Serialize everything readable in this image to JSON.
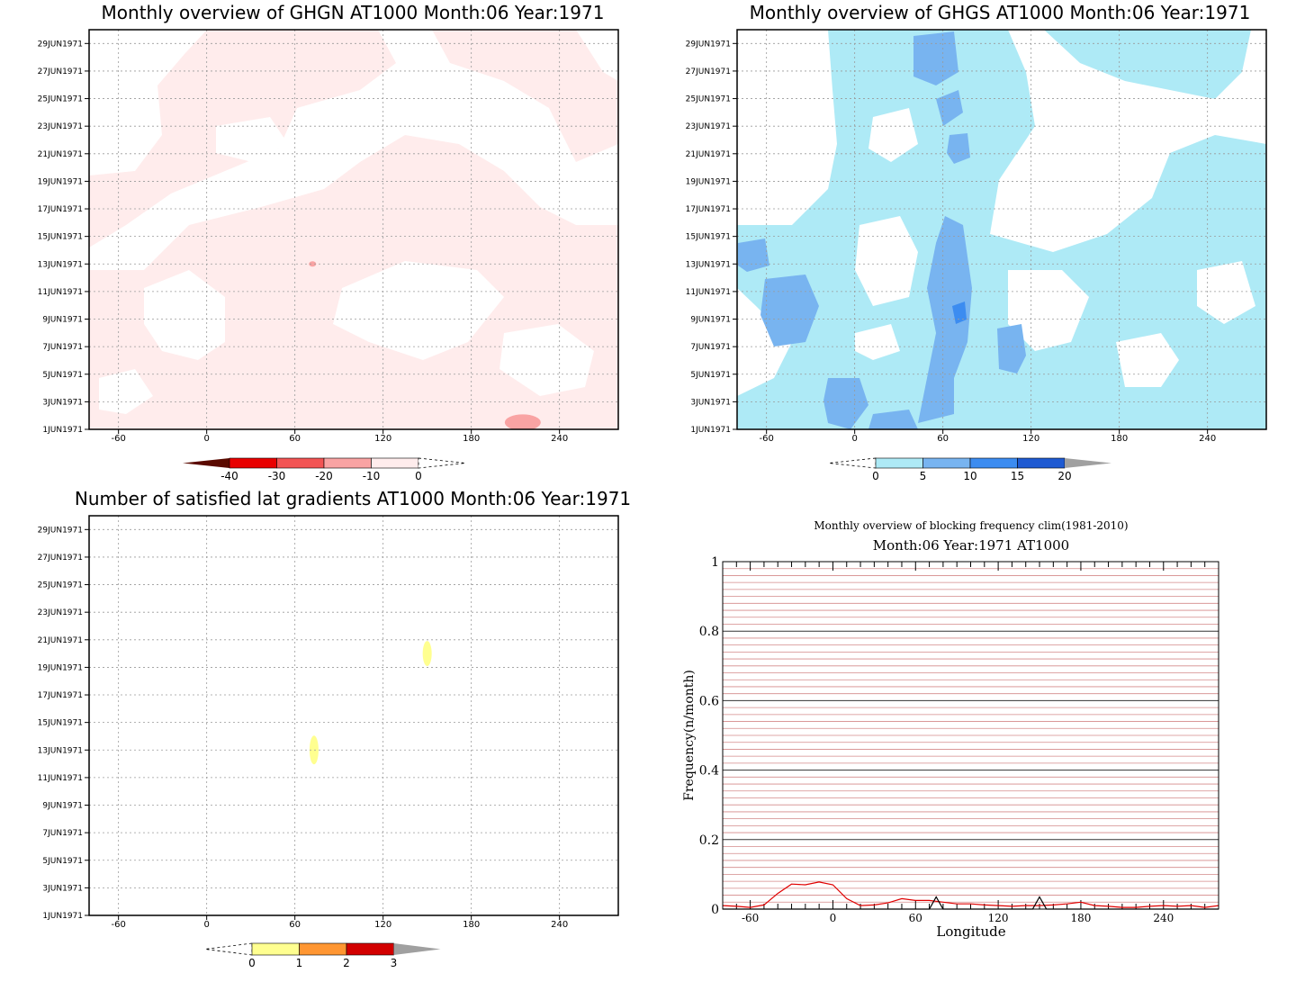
{
  "chart_data": [
    {
      "type": "heatmap",
      "title": "Monthly overview of GHGN AT1000 Month:06 Year:1971",
      "x_ticks": [
        "-60",
        "0",
        "60",
        "120",
        "180",
        "240"
      ],
      "x_tick_values": [
        -60,
        0,
        60,
        120,
        180,
        240
      ],
      "xlim": [
        -80,
        280
      ],
      "y_ticks": [
        "1JUN1971",
        "3JUN1971",
        "5JUN1971",
        "7JUN1971",
        "9JUN1971",
        "11JUN1971",
        "13JUN1971",
        "15JUN1971",
        "17JUN1971",
        "19JUN1971",
        "21JUN1971",
        "23JUN1971",
        "25JUN1971",
        "27JUN1971",
        "29JUN1971"
      ],
      "ylim": [
        "1JUN1971",
        "30JUN1971"
      ],
      "grid": true,
      "colorbar": {
        "levels": [
          "-40",
          "-30",
          "-20",
          "-10",
          "0"
        ],
        "level_values": [
          -40,
          -30,
          -20,
          -10,
          0
        ],
        "colors": [
          "#5a0a00",
          "#e80000",
          "#f25454",
          "#f9a3a3",
          "#ffecec",
          "#ffffff"
        ]
      },
      "dominant_range": [
        -10,
        0
      ],
      "features": [
        {
          "range": [
            -20,
            -10
          ],
          "lon": 215,
          "day": 1.5
        },
        {
          "range": [
            -20,
            -10
          ],
          "lon": 72,
          "day": 13.0
        }
      ]
    },
    {
      "type": "heatmap",
      "title": "Monthly overview of GHGS AT1000 Month:06 Year:1971",
      "x_ticks": [
        "-60",
        "0",
        "60",
        "120",
        "180",
        "240"
      ],
      "x_tick_values": [
        -60,
        0,
        60,
        120,
        180,
        240
      ],
      "xlim": [
        -80,
        280
      ],
      "y_ticks": [
        "1JUN1971",
        "3JUN1971",
        "5JUN1971",
        "7JUN1971",
        "9JUN1971",
        "11JUN1971",
        "13JUN1971",
        "15JUN1971",
        "17JUN1971",
        "19JUN1971",
        "21JUN1971",
        "23JUN1971",
        "25JUN1971",
        "27JUN1971",
        "29JUN1971"
      ],
      "ylim": [
        "1JUN1971",
        "30JUN1971"
      ],
      "grid": true,
      "colorbar": {
        "levels": [
          "0",
          "5",
          "10",
          "15",
          "20"
        ],
        "level_values": [
          0,
          5,
          10,
          15,
          20
        ],
        "colors": [
          "#ffffff",
          "#aeeaf6",
          "#78b4f0",
          "#3c8cf0",
          "#1e5ad2",
          "#a0a0a0"
        ]
      },
      "dominant_range": [
        0,
        5
      ],
      "features": [
        {
          "range": [
            5,
            10
          ],
          "lon": 72,
          "day": 13.5
        },
        {
          "range": [
            10,
            15
          ],
          "lon": 72,
          "day": 10.0
        },
        {
          "range": [
            5,
            10
          ],
          "lon": -45,
          "day": 10.5
        },
        {
          "range": [
            5,
            10
          ],
          "lon": -10,
          "day": 3.0
        },
        {
          "range": [
            5,
            10
          ],
          "lon": 105,
          "day": 7.0
        },
        {
          "range": [
            5,
            10
          ],
          "lon": 55,
          "day": 28.0
        }
      ]
    },
    {
      "type": "heatmap",
      "title": "Number of satisfied lat gradients AT1000 Month:06 Year:1971",
      "x_ticks": [
        "-60",
        "0",
        "60",
        "120",
        "180",
        "240"
      ],
      "x_tick_values": [
        -60,
        0,
        60,
        120,
        180,
        240
      ],
      "xlim": [
        -80,
        280
      ],
      "y_ticks": [
        "1JUN1971",
        "3JUN1971",
        "5JUN1971",
        "7JUN1971",
        "9JUN1971",
        "11JUN1971",
        "13JUN1971",
        "15JUN1971",
        "17JUN1971",
        "19JUN1971",
        "21JUN1971",
        "23JUN1971",
        "25JUN1971",
        "27JUN1971",
        "29JUN1971"
      ],
      "ylim": [
        "1JUN1971",
        "30JUN1971"
      ],
      "grid": true,
      "colorbar": {
        "levels": [
          "0",
          "1",
          "2",
          "3"
        ],
        "level_values": [
          0,
          1,
          2,
          3
        ],
        "colors": [
          "#ffffff",
          "#ffff90",
          "#ff9632",
          "#d20000",
          "#a0a0a0"
        ]
      },
      "features": [
        {
          "range": [
            0,
            1
          ],
          "lon": 150,
          "day": 20.0
        },
        {
          "range": [
            0,
            1
          ],
          "lon": 73,
          "day": 13.0
        }
      ]
    },
    {
      "type": "line",
      "title": "Monthly overview of blocking frequency clim(1981-2010)",
      "subtitle": "Month:06 Year:1971  AT1000",
      "xlabel": "Longitude",
      "ylabel": "Frequency(n/month)",
      "xlim": [
        -80,
        280
      ],
      "ylim": [
        0,
        1
      ],
      "x_ticks": [
        "-60",
        "0",
        "60",
        "120",
        "180",
        "240"
      ],
      "x_tick_values": [
        -60,
        0,
        60,
        120,
        180,
        240
      ],
      "y_ticks": [
        "0",
        "0.2",
        "0.4",
        "0.6",
        "0.8",
        "1"
      ],
      "y_tick_values": [
        0,
        0.2,
        0.4,
        0.6,
        0.8,
        1
      ],
      "grid": true,
      "series": [
        {
          "color": "#e00000",
          "x": [
            -80,
            -70,
            -60,
            -50,
            -40,
            -30,
            -20,
            -10,
            0,
            10,
            20,
            30,
            40,
            50,
            60,
            70,
            80,
            90,
            100,
            110,
            120,
            130,
            140,
            150,
            160,
            170,
            180,
            190,
            200,
            210,
            220,
            230,
            240,
            250,
            260,
            270,
            280
          ],
          "values": [
            0.01,
            0.008,
            0.005,
            0.012,
            0.045,
            0.072,
            0.07,
            0.078,
            0.07,
            0.03,
            0.01,
            0.012,
            0.018,
            0.03,
            0.025,
            0.025,
            0.02,
            0.015,
            0.015,
            0.012,
            0.01,
            0.008,
            0.01,
            0.01,
            0.012,
            0.015,
            0.02,
            0.01,
            0.008,
            0.005,
            0.005,
            0.008,
            0.01,
            0.008,
            0.01,
            0.005,
            0.01
          ]
        },
        {
          "color": "#000000",
          "x": [
            -80,
            60,
            70,
            75,
            80,
            90,
            140,
            145,
            150,
            155,
            160,
            280
          ],
          "values": [
            0,
            0,
            0,
            0.035,
            0,
            0,
            0,
            0,
            0.035,
            0,
            0,
            0
          ]
        }
      ]
    }
  ]
}
